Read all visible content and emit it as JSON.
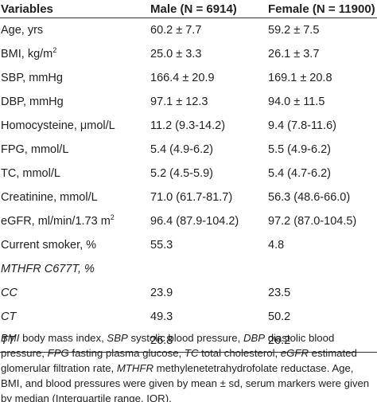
{
  "table": {
    "headers": [
      "Variables",
      "Male (N = 6914)",
      "Female (N = 11900)"
    ],
    "rows": [
      {
        "label": "Age, yrs",
        "label_sup": "",
        "italic": false,
        "male": "60.2 ± 7.7",
        "female": "59.2 ± 7.5"
      },
      {
        "label": "BMI, kg/m",
        "label_sup": "2",
        "italic": false,
        "male": "25.0 ± 3.3",
        "female": "26.1 ± 3.7"
      },
      {
        "label": "SBP, mmHg",
        "label_sup": "",
        "italic": false,
        "male": "166.4 ± 20.9",
        "female": "169.1 ± 20.8"
      },
      {
        "label": "DBP, mmHg",
        "label_sup": "",
        "italic": false,
        "male": "97.1 ± 12.3",
        "female": "94.0 ± 11.5"
      },
      {
        "label": "Homocysteine, μmol/L",
        "label_sup": "",
        "italic": false,
        "male": "11.2 (9.3-14.2)",
        "female": "9.4 (7.8-11.6)"
      },
      {
        "label": "FPG, mmol/L",
        "label_sup": "",
        "italic": false,
        "male": "5.4 (4.9-6.2)",
        "female": "5.5 (4.9-6.2)"
      },
      {
        "label": "TC, mmol/L",
        "label_sup": "",
        "italic": false,
        "male": "5.2 (4.5-5.9)",
        "female": "5.4 (4.7-6.2)"
      },
      {
        "label": "Creatinine, mmol/L",
        "label_sup": "",
        "italic": false,
        "male": "71.0 (61.7-81.7)",
        "female": "56.3 (48.6-66.0)"
      },
      {
        "label": "eGFR, ml/min/1.73 m",
        "label_sup": "2",
        "italic": false,
        "male": "96.4 (87.9-104.2)",
        "female": "97.2 (87.0-104.5)"
      },
      {
        "label": "Current smoker, %",
        "label_sup": "",
        "italic": false,
        "male": "55.3",
        "female": "4.8"
      },
      {
        "label": "MTHFR C677T, %",
        "label_sup": "",
        "italic": true,
        "male": "",
        "female": ""
      },
      {
        "label": "CC",
        "label_sup": "",
        "italic": true,
        "male": "23.9",
        "female": "23.5"
      },
      {
        "label": "CT",
        "label_sup": "",
        "italic": true,
        "male": "49.3",
        "female": "50.2"
      },
      {
        "label": "TT",
        "label_sup": "",
        "italic": true,
        "male": "26.8",
        "female": "26.2"
      }
    ]
  },
  "footnote": {
    "parts": [
      {
        "t": "BMI",
        "i": true
      },
      {
        "t": " body mass index, ",
        "i": false
      },
      {
        "t": "SBP",
        "i": true
      },
      {
        "t": " systolic blood pressure, ",
        "i": false
      },
      {
        "t": "DBP",
        "i": true
      },
      {
        "t": " diastolic blood pressure, ",
        "i": false
      },
      {
        "t": "FPG",
        "i": true
      },
      {
        "t": " fasting plasma glucose, ",
        "i": false
      },
      {
        "t": "TC",
        "i": true
      },
      {
        "t": " total cholesterol, ",
        "i": false
      },
      {
        "t": "eGFR",
        "i": true
      },
      {
        "t": " estimated glomerular filtration rate, ",
        "i": false
      },
      {
        "t": "MTHFR",
        "i": true
      },
      {
        "t": " methylenetetrahydrofolate reductase. Age, BMI, and blood pressures were given by mean ± sd, serum markers were given by median (Interquartile range, IQR).",
        "i": false
      }
    ]
  }
}
